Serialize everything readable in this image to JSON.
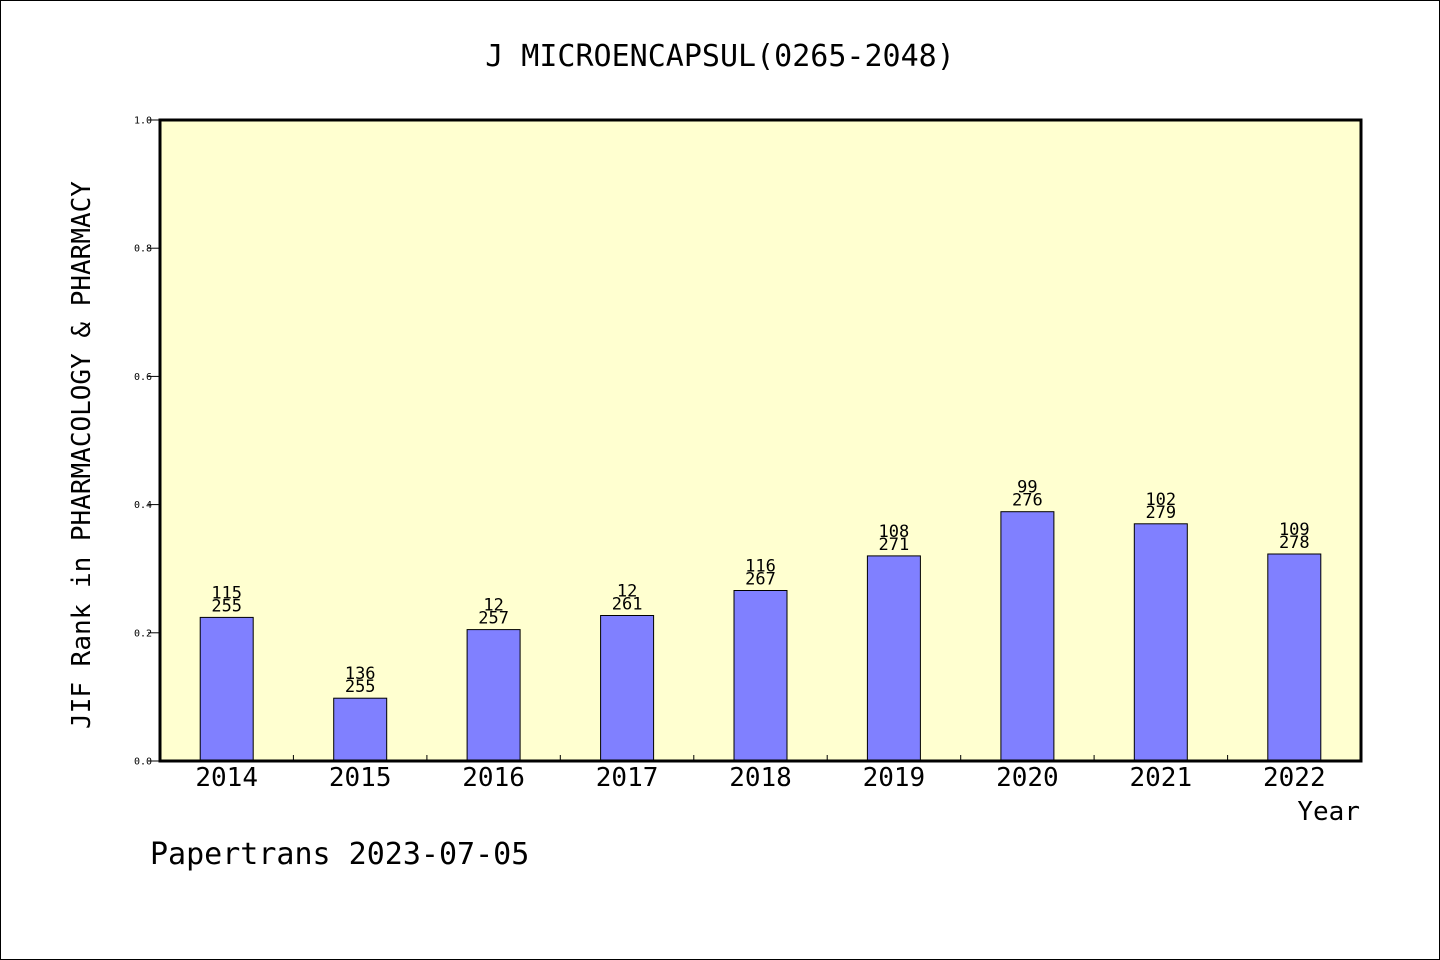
{
  "chart_data": {
    "type": "bar",
    "title": "J MICROENCAPSUL(0265-2048)",
    "xlabel": "Year",
    "ylabel": "JIF Rank in PHARMACOLOGY & PHARMACY",
    "ylim": [
      0,
      1.0
    ],
    "yticks": [
      "0.0",
      "0.2",
      "0.4",
      "0.6",
      "0.8",
      "1.0"
    ],
    "categories": [
      "2014",
      "2015",
      "2016",
      "2017",
      "2018",
      "2019",
      "2020",
      "2021",
      "2022"
    ],
    "values": [
      0.224,
      0.098,
      0.205,
      0.227,
      0.266,
      0.32,
      0.389,
      0.37,
      0.323
    ],
    "rank_labels": [
      "115",
      "136",
      "12",
      "12",
      "116",
      "108",
      "99",
      "102",
      "109"
    ],
    "total_labels": [
      "255",
      "255",
      "257",
      "261",
      "267",
      "271",
      "276",
      "279",
      "278"
    ],
    "grid": false,
    "colors": {
      "bar": "#8080ff",
      "plot_bg": "#ffffd0"
    }
  },
  "footer": "Papertrans 2023-07-05"
}
